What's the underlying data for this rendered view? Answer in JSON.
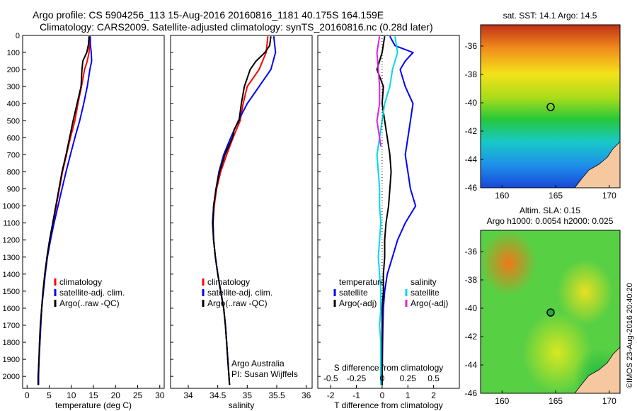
{
  "title_line1": "Argo profile: CS 5904256_113 15-Aug-2016 20160816_1181 40.175S 164.159E",
  "title_line2": "Climatology: CARS2009. Satellite-adjusted climatology: synTS_20160816.nc (0.28d later)",
  "footer": {
    "org": "Argo Australia",
    "pi": "PI: Susan Wijffels",
    "stamp": "©IMOS 23-Aug-2016 20:40:20"
  },
  "colors": {
    "climatology": "#ff0000",
    "satellite": "#0000ff",
    "argo": "#000000",
    "salinity_satellite": "#00d8e8",
    "salinity_argo": "#e020e0",
    "land": "#f5c8a0"
  },
  "chart_data": [
    {
      "type": "line",
      "id": "temperature",
      "xlabel": "temperature (deg C)",
      "ylabel": "",
      "xlim": [
        -1,
        31
      ],
      "ylim": [
        2070,
        0
      ],
      "xticks": [
        0,
        5,
        10,
        15,
        20,
        25,
        30
      ],
      "yticks": [
        0,
        100,
        200,
        300,
        400,
        500,
        600,
        700,
        800,
        900,
        1000,
        1100,
        1200,
        1300,
        1400,
        1500,
        1600,
        1700,
        1800,
        1900,
        2000
      ],
      "legend": [
        "climatology",
        "satellite-adj. clim.",
        "Argo(..raw -QC)"
      ],
      "series": [
        {
          "name": "climatology",
          "color": "#ff0000",
          "points": [
            [
              14.2,
              5
            ],
            [
              14.1,
              50
            ],
            [
              14.0,
              100
            ],
            [
              13.6,
              150
            ],
            [
              13.0,
              200
            ],
            [
              12.3,
              300
            ],
            [
              11.5,
              400
            ],
            [
              10.8,
              500
            ],
            [
              9.8,
              600
            ],
            [
              8.9,
              700
            ],
            [
              8.0,
              800
            ],
            [
              7.3,
              900
            ],
            [
              6.6,
              1000
            ],
            [
              5.9,
              1100
            ],
            [
              5.1,
              1200
            ],
            [
              4.5,
              1300
            ],
            [
              4.0,
              1400
            ],
            [
              3.6,
              1500
            ],
            [
              3.3,
              1600
            ],
            [
              3.1,
              1700
            ],
            [
              2.9,
              1800
            ],
            [
              2.7,
              1900
            ],
            [
              2.5,
              2000
            ],
            [
              2.5,
              2050
            ]
          ]
        },
        {
          "name": "satellite-adj. clim.",
          "color": "#0000ff",
          "points": [
            [
              14.3,
              5
            ],
            [
              14.3,
              50
            ],
            [
              14.5,
              100
            ],
            [
              14.6,
              150
            ],
            [
              14.2,
              200
            ],
            [
              13.6,
              300
            ],
            [
              12.8,
              400
            ],
            [
              11.9,
              500
            ],
            [
              10.8,
              600
            ],
            [
              9.8,
              700
            ],
            [
              8.8,
              800
            ],
            [
              7.9,
              900
            ],
            [
              7.0,
              1000
            ],
            [
              6.1,
              1100
            ],
            [
              5.3,
              1200
            ],
            [
              4.6,
              1300
            ],
            [
              4.1,
              1400
            ],
            [
              3.7,
              1500
            ],
            [
              3.3,
              1600
            ],
            [
              3.1,
              1700
            ],
            [
              2.9,
              1800
            ],
            [
              2.7,
              1900
            ],
            [
              2.6,
              2000
            ],
            [
              2.6,
              2050
            ]
          ]
        },
        {
          "name": "Argo(..raw -QC)",
          "color": "#000000",
          "points": [
            [
              14.0,
              5
            ],
            [
              13.9,
              50
            ],
            [
              13.5,
              100
            ],
            [
              12.6,
              150
            ],
            [
              12.4,
              200
            ],
            [
              12.2,
              300
            ],
            [
              11.3,
              400
            ],
            [
              10.4,
              500
            ],
            [
              9.6,
              600
            ],
            [
              8.8,
              700
            ],
            [
              7.9,
              800
            ],
            [
              7.2,
              900
            ],
            [
              6.5,
              1000
            ],
            [
              5.8,
              1100
            ],
            [
              5.1,
              1200
            ],
            [
              4.5,
              1300
            ],
            [
              4.0,
              1400
            ],
            [
              3.6,
              1500
            ],
            [
              3.3,
              1600
            ],
            [
              3.0,
              1700
            ],
            [
              2.8,
              1800
            ],
            [
              2.7,
              1900
            ],
            [
              2.5,
              2000
            ],
            [
              2.5,
              2050
            ]
          ]
        }
      ]
    },
    {
      "type": "line",
      "id": "salinity",
      "xlabel": "salinity",
      "ylabel": "",
      "xlim": [
        33.7,
        36.1
      ],
      "ylim": [
        2070,
        0
      ],
      "xticks": [
        34,
        34.5,
        35,
        35.5,
        36
      ],
      "legend": [
        "climatology",
        "satellite-adj. clim.",
        "Argo(..raw -QC)"
      ],
      "series": [
        {
          "name": "climatology",
          "color": "#ff0000",
          "points": [
            [
              35.35,
              5
            ],
            [
              35.32,
              100
            ],
            [
              35.2,
              200
            ],
            [
              35.0,
              300
            ],
            [
              34.93,
              400
            ],
            [
              34.88,
              500
            ],
            [
              34.76,
              600
            ],
            [
              34.65,
              700
            ],
            [
              34.55,
              800
            ],
            [
              34.48,
              900
            ],
            [
              34.44,
              1000
            ],
            [
              34.42,
              1100
            ],
            [
              34.43,
              1200
            ],
            [
              34.46,
              1300
            ],
            [
              34.5,
              1400
            ],
            [
              34.55,
              1500
            ],
            [
              34.6,
              1600
            ],
            [
              34.63,
              1700
            ],
            [
              34.65,
              1800
            ],
            [
              34.67,
              1900
            ],
            [
              34.69,
              2000
            ],
            [
              34.7,
              2050
            ]
          ]
        },
        {
          "name": "satellite-adj. clim.",
          "color": "#0000ff",
          "points": [
            [
              35.45,
              5
            ],
            [
              35.48,
              100
            ],
            [
              35.4,
              200
            ],
            [
              35.2,
              300
            ],
            [
              35.0,
              400
            ],
            [
              34.85,
              500
            ],
            [
              34.72,
              600
            ],
            [
              34.6,
              700
            ],
            [
              34.52,
              800
            ],
            [
              34.47,
              900
            ],
            [
              34.43,
              1000
            ],
            [
              34.41,
              1100
            ],
            [
              34.43,
              1200
            ],
            [
              34.46,
              1300
            ],
            [
              34.5,
              1400
            ],
            [
              34.55,
              1500
            ],
            [
              34.6,
              1600
            ],
            [
              34.63,
              1700
            ],
            [
              34.65,
              1800
            ],
            [
              34.67,
              1900
            ],
            [
              34.69,
              2000
            ],
            [
              34.7,
              2050
            ]
          ]
        },
        {
          "name": "Argo(..raw -QC)",
          "color": "#000000",
          "points": [
            [
              35.4,
              5
            ],
            [
              35.38,
              60
            ],
            [
              35.3,
              100
            ],
            [
              35.15,
              150
            ],
            [
              35.05,
              200
            ],
            [
              34.95,
              300
            ],
            [
              34.9,
              400
            ],
            [
              34.86,
              500
            ],
            [
              34.78,
              550
            ],
            [
              34.75,
              600
            ],
            [
              34.62,
              700
            ],
            [
              34.53,
              800
            ],
            [
              34.47,
              900
            ],
            [
              34.43,
              1000
            ],
            [
              34.42,
              1100
            ],
            [
              34.43,
              1200
            ],
            [
              34.46,
              1300
            ],
            [
              34.5,
              1400
            ],
            [
              34.55,
              1500
            ],
            [
              34.6,
              1600
            ],
            [
              34.63,
              1700
            ],
            [
              34.65,
              1800
            ],
            [
              34.67,
              1900
            ],
            [
              34.69,
              2000
            ],
            [
              34.7,
              2050
            ]
          ]
        }
      ]
    },
    {
      "type": "line",
      "id": "difference",
      "xlabel": "T difference from climatology",
      "xlabel_top": "S difference from climatology",
      "xlim": [
        -2.5,
        3
      ],
      "ylim": [
        2070,
        0
      ],
      "xticks": [
        -2,
        -1,
        0,
        1,
        2
      ],
      "top_ticks": [
        {
          "label": "-0.5",
          "x": -2
        },
        {
          "label": "-0.25",
          "x": -1
        },
        {
          "label": "0",
          "x": 0
        },
        {
          "label": "0.25",
          "x": 1
        },
        {
          "label": "0.5",
          "x": 2
        }
      ],
      "legend_left": {
        "header": "temperature",
        "items": [
          "satellite",
          "Argo(-adj)"
        ]
      },
      "legend_right": {
        "header": "salinity",
        "items": [
          "satellite",
          "Argo(-adj)"
        ]
      },
      "series": [
        {
          "name": "satellite",
          "group": "temperature",
          "color": "#0000ff",
          "points": [
            [
              0.3,
              5
            ],
            [
              0.5,
              60
            ],
            [
              1.2,
              100
            ],
            [
              0.9,
              150
            ],
            [
              0.7,
              200
            ],
            [
              0.9,
              300
            ],
            [
              1.2,
              400
            ],
            [
              1.1,
              500
            ],
            [
              1.0,
              600
            ],
            [
              0.9,
              700
            ],
            [
              1.0,
              800
            ],
            [
              1.1,
              900
            ],
            [
              1.3,
              1000
            ],
            [
              0.9,
              1100
            ],
            [
              0.6,
              1200
            ],
            [
              0.4,
              1300
            ],
            [
              0.2,
              1400
            ],
            [
              0.1,
              1500
            ],
            [
              0.05,
              1600
            ],
            [
              0.03,
              1700
            ],
            [
              0.02,
              1800
            ],
            [
              0.01,
              1900
            ],
            [
              0,
              2050
            ]
          ]
        },
        {
          "name": "Argo(-adj)",
          "group": "temperature",
          "color": "#000000",
          "points": [
            [
              0.1,
              5
            ],
            [
              0.0,
              100
            ],
            [
              -0.2,
              200
            ],
            [
              0.05,
              300
            ],
            [
              0.0,
              400
            ],
            [
              0.1,
              500
            ],
            [
              0.2,
              600
            ],
            [
              0.3,
              700
            ],
            [
              0.35,
              800
            ],
            [
              0.3,
              900
            ],
            [
              0.25,
              1000
            ],
            [
              0.15,
              1100
            ],
            [
              0.1,
              1200
            ],
            [
              0.1,
              1300
            ],
            [
              0.05,
              1400
            ],
            [
              0.05,
              1500
            ],
            [
              0.0,
              1600
            ],
            [
              0.0,
              1700
            ],
            [
              0.0,
              1800
            ],
            [
              0.0,
              1900
            ],
            [
              0.0,
              2050
            ]
          ]
        },
        {
          "name": "satellite",
          "group": "salinity",
          "color": "#00d8e8",
          "points": [
            [
              0.5,
              5
            ],
            [
              0.6,
              100
            ],
            [
              0.4,
              200
            ],
            [
              0.3,
              300
            ],
            [
              0.1,
              400
            ],
            [
              0.0,
              500
            ],
            [
              -0.1,
              600
            ],
            [
              -0.2,
              700
            ],
            [
              -0.15,
              800
            ],
            [
              -0.1,
              900
            ],
            [
              -0.1,
              1000
            ],
            [
              -0.05,
              1100
            ],
            [
              -0.1,
              1200
            ],
            [
              -0.15,
              1300
            ],
            [
              -0.1,
              1400
            ],
            [
              -0.05,
              1500
            ],
            [
              -0.05,
              1600
            ],
            [
              -0.1,
              1700
            ],
            [
              -0.05,
              1800
            ],
            [
              -0.05,
              1900
            ],
            [
              -0.05,
              2050
            ]
          ]
        },
        {
          "name": "Argo(-adj)",
          "group": "salinity",
          "color": "#e020e0",
          "points": [
            [
              -0.1,
              5
            ],
            [
              -0.2,
              100
            ],
            [
              -0.15,
              200
            ],
            [
              -0.1,
              300
            ],
            [
              -0.1,
              400
            ],
            [
              -0.2,
              500
            ],
            [
              -0.1,
              600
            ],
            [
              -0.05,
              650
            ]
          ]
        }
      ]
    },
    {
      "type": "heatmap",
      "id": "sst-map",
      "title": "sat. SST: 14.1  Argo: 14.5",
      "xlim": [
        158,
        171
      ],
      "ylim": [
        -46,
        -34.5
      ],
      "xticks": [
        160,
        165,
        170
      ],
      "yticks": [
        -36,
        -38,
        -40,
        -42,
        -44,
        -46
      ],
      "marker": {
        "lon": 164.159,
        "lat": -40.175
      }
    },
    {
      "type": "heatmap",
      "id": "sla-map",
      "title_line1": "Altim. SLA: 0.15",
      "title_line2": "Argo h1000: 0.0054 h2000: 0.025",
      "xlim": [
        158,
        171
      ],
      "ylim": [
        -46,
        -34.5
      ],
      "xticks": [
        160,
        165,
        170
      ],
      "yticks": [
        -36,
        -38,
        -40,
        -42,
        -44,
        -46
      ],
      "marker": {
        "lon": 164.159,
        "lat": -40.175
      }
    }
  ]
}
